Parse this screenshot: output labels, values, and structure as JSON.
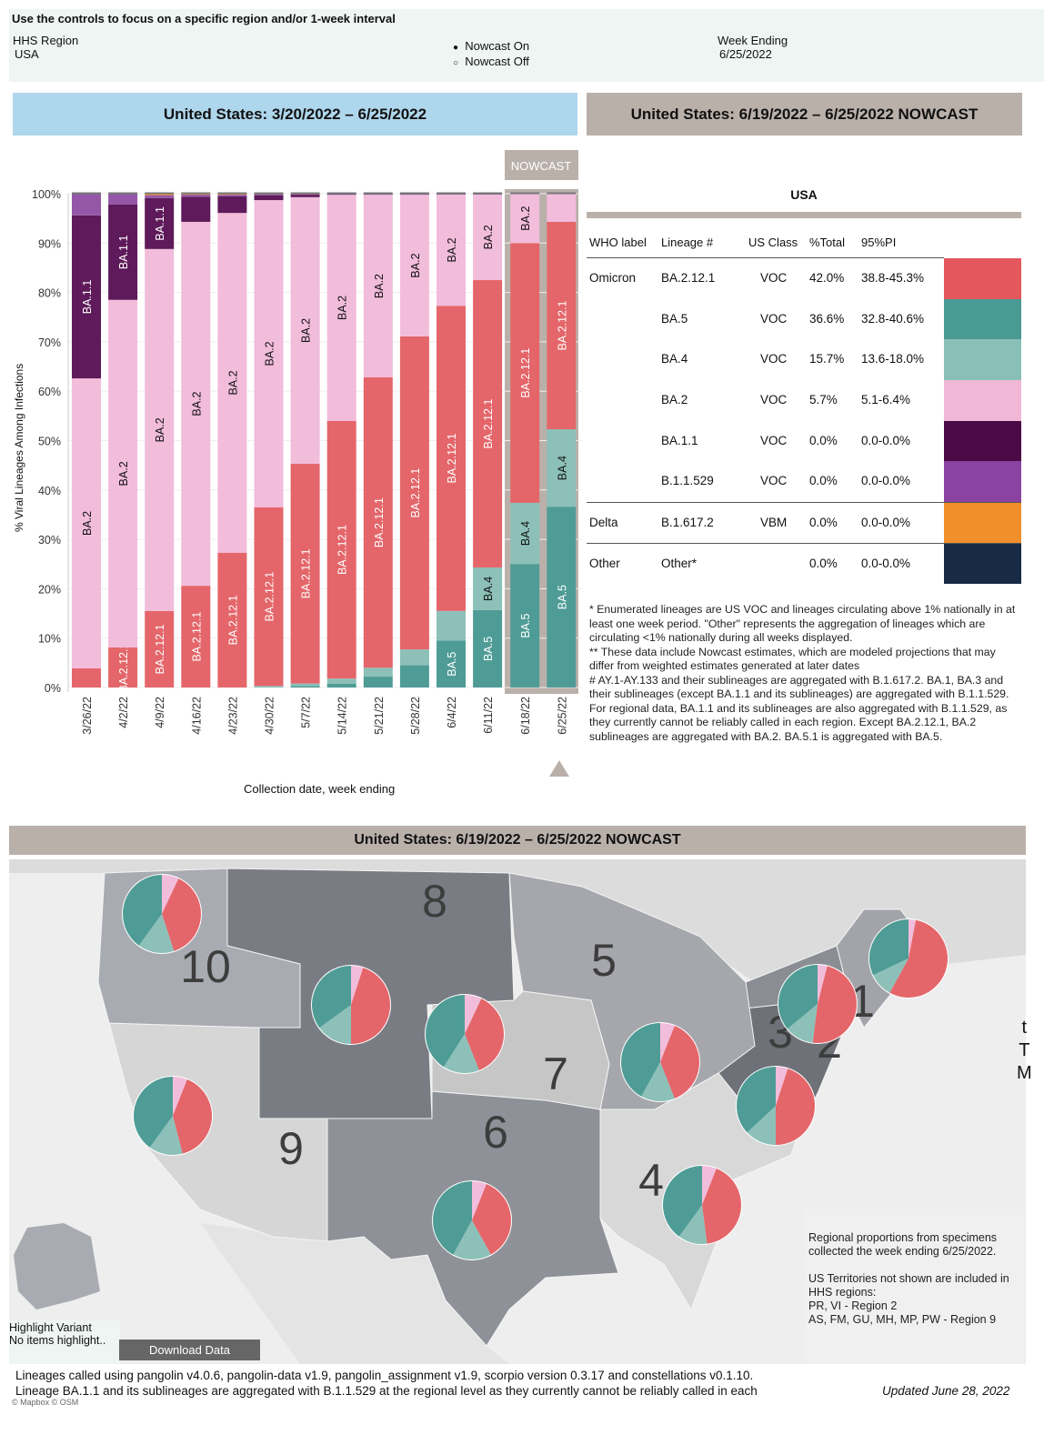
{
  "controls": {
    "instruction": "Use the controls to focus on a specific region and/or 1-week interval",
    "region_label": "HHS Region",
    "region_value": "USA",
    "nowcast_on": "Nowcast On",
    "nowcast_off": "Nowcast Off",
    "nowcast_selected": "on",
    "week_label": "Week Ending",
    "week_value": "6/25/2022"
  },
  "left_header": "United States: 3/20/2022 – 6/25/2022",
  "right_header": "United States: 6/19/2022 – 6/25/2022 NOWCAST",
  "colors": {
    "BA.5": "#4f9c96",
    "BA.4": "#8cc0b8",
    "BA.2.12.1": "#e4666a",
    "BA.2": "#f2bcdb",
    "BA.1.1": "#5e1a5a",
    "B.1.1.529": "#9457a7",
    "B.1.617.2": "#f29030",
    "Other": "#172b45",
    "header_blue": "#aed6ec",
    "header_taupe": "#bab0aa"
  },
  "chart_data": {
    "type": "bar",
    "stacked": true,
    "ylabel": "% Viral Lineages Among Infections",
    "xlabel": "Collection date, week ending",
    "ylim": [
      0,
      100
    ],
    "yticks": [
      "0%",
      "10%",
      "20%",
      "30%",
      "40%",
      "50%",
      "60%",
      "70%",
      "80%",
      "90%",
      "100%"
    ],
    "nowcast_label": "NOWCAST",
    "nowcast_categories": [
      "6/18/22",
      "6/25/22"
    ],
    "categories": [
      "3/26/22",
      "4/2/22",
      "4/9/22",
      "4/16/22",
      "4/23/22",
      "4/30/22",
      "5/7/22",
      "5/14/22",
      "5/21/22",
      "5/28/22",
      "6/4/22",
      "6/11/22",
      "6/18/22",
      "6/25/22"
    ],
    "series": [
      {
        "name": "BA.5",
        "values": [
          0,
          0,
          0,
          0,
          0,
          0,
          0.3,
          0.8,
          2.2,
          4.5,
          9.5,
          15.7,
          25.0,
          36.6
        ]
      },
      {
        "name": "BA.4",
        "values": [
          0,
          0,
          0,
          0,
          0,
          0.3,
          0.5,
          1.0,
          1.8,
          3.2,
          6.0,
          8.6,
          12.4,
          15.7
        ]
      },
      {
        "name": "BA.2.12.1",
        "values": [
          3.9,
          8.1,
          15.5,
          20.6,
          27.3,
          36.2,
          44.5,
          52.2,
          58.8,
          63.4,
          61.8,
          58.2,
          52.6,
          42.0
        ]
      },
      {
        "name": "BA.2",
        "values": [
          58.7,
          70.4,
          73.3,
          73.7,
          68.8,
          62.2,
          54.0,
          45.8,
          37.0,
          28.7,
          22.6,
          17.4,
          10.0,
          5.7
        ]
      },
      {
        "name": "BA.1.1",
        "values": [
          33.0,
          19.3,
          10.3,
          5.1,
          3.4,
          1.0,
          0.5,
          0.1,
          0,
          0,
          0,
          0,
          0,
          0
        ]
      },
      {
        "name": "B.1.1.529",
        "values": [
          4.4,
          2.2,
          0.6,
          0.4,
          0.3,
          0.2,
          0.1,
          0.05,
          0.1,
          0.1,
          0.05,
          0.05,
          0,
          0
        ]
      },
      {
        "name": "B.1.617.2",
        "values": [
          0,
          0,
          0.3,
          0.2,
          0.2,
          0.1,
          0.1,
          0,
          0,
          0,
          0,
          0,
          0,
          0
        ]
      },
      {
        "name": "Other",
        "values": [
          0,
          0,
          0,
          0,
          0,
          0,
          0,
          0.05,
          0.1,
          0.1,
          0.05,
          0.05,
          0,
          0
        ]
      }
    ]
  },
  "table": {
    "title": "USA",
    "headers": [
      "WHO label",
      "Lineage #",
      "US Class",
      "%Total",
      "95%PI"
    ],
    "rows": [
      {
        "who": "Omicron",
        "lineage": "BA.2.12.1",
        "cls": "VOC",
        "total": "42.0%",
        "pi": "38.8-45.3%",
        "color": "#e3575d"
      },
      {
        "who": "",
        "lineage": "BA.5",
        "cls": "VOC",
        "total": "36.6%",
        "pi": "32.8-40.6%",
        "color": "#4a9a94"
      },
      {
        "who": "",
        "lineage": "BA.4",
        "cls": "VOC",
        "total": "15.7%",
        "pi": "13.6-18.0%",
        "color": "#89bfb6"
      },
      {
        "who": "",
        "lineage": "BA.2",
        "cls": "VOC",
        "total": "5.7%",
        "pi": "5.1-6.4%",
        "color": "#f0b7d7"
      },
      {
        "who": "",
        "lineage": "BA.1.1",
        "cls": "VOC",
        "total": "0.0%",
        "pi": "0.0-0.0%",
        "color": "#4b0a45"
      },
      {
        "who": "",
        "lineage": "B.1.1.529",
        "cls": "VOC",
        "total": "0.0%",
        "pi": "0.0-0.0%",
        "color": "#8a43a0"
      },
      {
        "who": "Delta",
        "lineage": "B.1.617.2",
        "cls": "VBM",
        "total": "0.0%",
        "pi": "0.0-0.0%",
        "color": "#f28f2d"
      },
      {
        "who": "Other",
        "lineage": "Other*",
        "cls": "",
        "total": "0.0%",
        "pi": "0.0-0.0%",
        "color": "#172b45"
      }
    ]
  },
  "footnotes": {
    "f1": "*      Enumerated lineages are US VOC and lineages circulating above 1% nationally in at least one week period. \"Other\" represents the aggregation of lineages which are circulating <1% nationally during all weeks displayed.",
    "f2": "**      These data include Nowcast estimates, which are modeled projections that may differ from weighted estimates generated at later dates",
    "f3": "#      AY.1-AY.133 and their sublineages are aggregated with B.1.617.2. BA.1, BA.3 and their sublineages (except BA.1.1 and its sublineages) are aggregated with B.1.1.529. For regional data, BA.1.1 and its sublineages are also aggregated with B.1.1.529, as they currently cannot be reliably called in each region. Except BA.2.12.1, BA.2 sublineages are aggregated with BA.2. BA.5.1 is aggregated with BA.5."
  },
  "map": {
    "title": "United States: 6/19/2022 – 6/25/2022 NOWCAST",
    "pie_order": [
      "BA.2",
      "BA.2.12.1",
      "BA.4",
      "BA.5"
    ],
    "regions": [
      {
        "id": "1",
        "pie": [
          3,
          55,
          10,
          32
        ]
      },
      {
        "id": "2",
        "pie": [
          4,
          48,
          12,
          36
        ]
      },
      {
        "id": "3",
        "pie": [
          5,
          45,
          13,
          37
        ]
      },
      {
        "id": "4",
        "pie": [
          6,
          42,
          12,
          40
        ]
      },
      {
        "id": "5",
        "pie": [
          6,
          38,
          14,
          42
        ]
      },
      {
        "id": "6",
        "pie": [
          6,
          36,
          16,
          42
        ]
      },
      {
        "id": "7",
        "pie": [
          7,
          37,
          15,
          41
        ]
      },
      {
        "id": "8",
        "pie": [
          5,
          45,
          15,
          35
        ]
      },
      {
        "id": "9",
        "pie": [
          6,
          40,
          14,
          40
        ]
      },
      {
        "id": "10",
        "pie": [
          7,
          38,
          15,
          40
        ]
      }
    ],
    "note1": "Regional proportions from specimens collected the week ending 6/25/2022.",
    "note2": "US Territories not shown are included in HHS regions:",
    "note3": "PR, VI - Region 2",
    "note4": "AS, FM, GU, MH, MP, PW - Region 9",
    "attribution": "© Mapbox © OSM",
    "edge_text": [
      "t",
      "T",
      "M"
    ]
  },
  "highlight": {
    "label": "Highlight Variant",
    "value": "No items highlight.."
  },
  "download_label": "Download Data",
  "footer": {
    "line1": "Lineages called using pangolin v4.0.6, pangolin-data v1.9, pangolin_assignment v1.9, scorpio version 0.3.17 and constellations v0.1.10.",
    "line2": "Lineage BA.1.1 and its sublineages are aggregated with B.1.1.529 at the regional level as they currently cannot be reliably called in each",
    "updated": "Updated June 28, 2022"
  }
}
